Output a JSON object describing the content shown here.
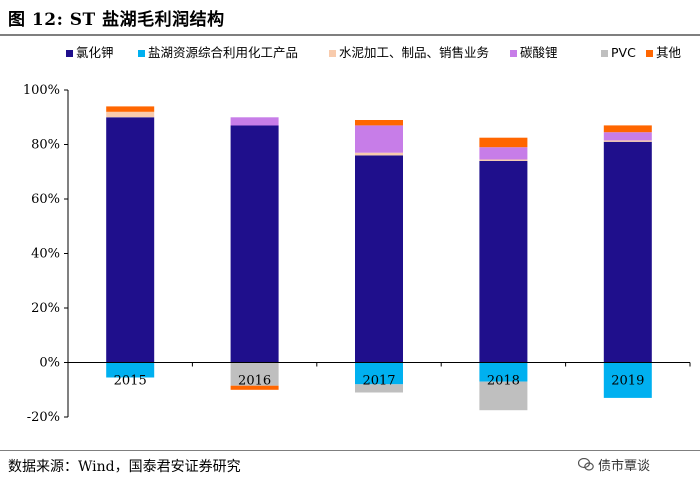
{
  "header": {
    "title": "图 12:  ST 盐湖毛利润结构"
  },
  "footer": {
    "source": "数据来源：Wind，国泰君安证券研究",
    "watermark": "债市覃谈"
  },
  "chart_data": {
    "type": "bar",
    "stacked": true,
    "title": "",
    "xlabel": "",
    "ylabel": "",
    "ylim": [
      -20,
      100
    ],
    "yticks": [
      -20,
      0,
      20,
      40,
      60,
      80,
      100
    ],
    "ytick_labels": [
      "-20%",
      "0%",
      "20%",
      "40%",
      "60%",
      "80%",
      "100%"
    ],
    "grid": false,
    "legend": "top",
    "categories": [
      "2015",
      "2016",
      "2017",
      "2018",
      "2019"
    ],
    "series": [
      {
        "name": "氯化钾",
        "color": "#1f0f8c",
        "values": [
          90,
          87,
          76,
          74,
          81
        ]
      },
      {
        "name": "盐湖资源综合利用化工产品",
        "color": "#00b0f0",
        "values": [
          -5.5,
          0,
          -8,
          -7,
          -13
        ]
      },
      {
        "name": "水泥加工、制品、销售业务",
        "color": "#f8cbad",
        "values": [
          2,
          0,
          1,
          0.5,
          0.5
        ]
      },
      {
        "name": "碳酸锂",
        "color": "#c77de8",
        "values": [
          0,
          3,
          10,
          4.5,
          3
        ]
      },
      {
        "name": "PVC",
        "color": "#bfbfbf",
        "values": [
          0,
          -8.5,
          -3,
          -10.5,
          0
        ]
      },
      {
        "name": "其他",
        "color": "#ff6600",
        "values": [
          2,
          -1.5,
          2,
          3.5,
          2.5
        ]
      }
    ]
  }
}
